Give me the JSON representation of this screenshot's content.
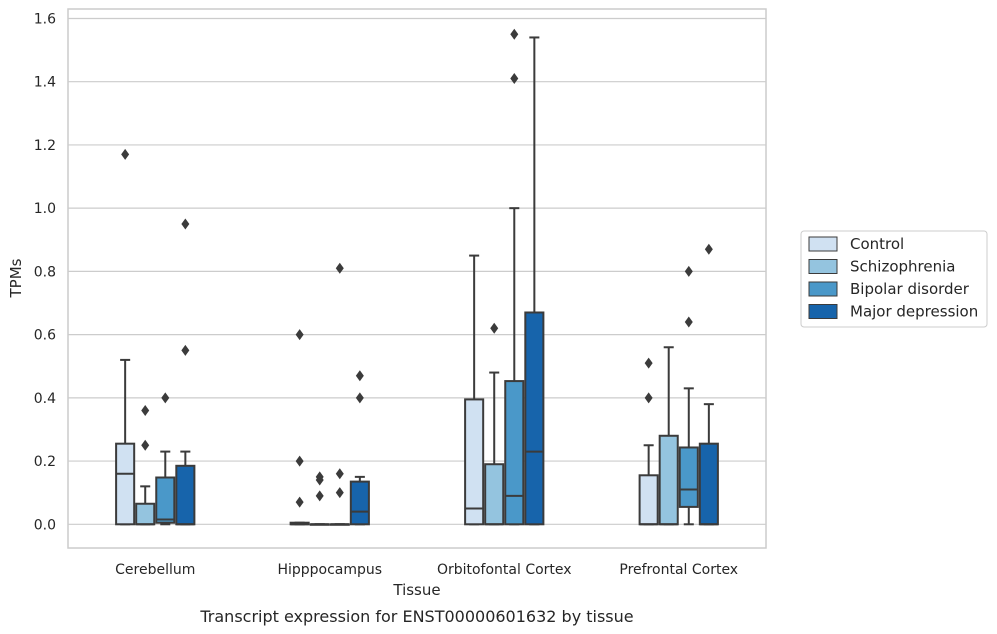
{
  "chart_data": {
    "type": "box",
    "xlabel": "Tissue",
    "ylabel": "TPMs",
    "ylim": [
      -0.075,
      1.63
    ],
    "yticks": [
      0.0,
      0.2,
      0.4,
      0.6,
      0.8,
      1.0,
      1.2,
      1.4,
      1.6
    ],
    "grid": "y",
    "legend": "outside-right",
    "categories": [
      "Cerebellum",
      "Hipppocampus",
      "Orbitofontal Cortex",
      "Prefrontal Cortex"
    ],
    "series": [
      {
        "name": "Control",
        "color": "#d0e1f2",
        "boxes": [
          {
            "whislo": 0.0,
            "q1": 0.0,
            "med": 0.16,
            "q3": 0.255,
            "whishi": 0.52,
            "fliers": [
              1.17
            ]
          },
          {
            "whislo": 0.0,
            "q1": 0.0,
            "med": 0.0,
            "q3": 0.005,
            "whishi": 0.005,
            "fliers": [
              0.6,
              0.2,
              0.07
            ]
          },
          {
            "whislo": 0.0,
            "q1": 0.0,
            "med": 0.05,
            "q3": 0.395,
            "whishi": 0.85,
            "fliers": []
          },
          {
            "whislo": 0.0,
            "q1": 0.0,
            "med": 0.0,
            "q3": 0.155,
            "whishi": 0.25,
            "fliers": [
              0.51,
              0.4
            ]
          }
        ]
      },
      {
        "name": "Schizophrenia",
        "color": "#94c4df",
        "boxes": [
          {
            "whislo": 0.0,
            "q1": 0.0,
            "med": 0.0,
            "q3": 0.065,
            "whishi": 0.12,
            "fliers": [
              0.36,
              0.25
            ]
          },
          {
            "whislo": 0.0,
            "q1": 0.0,
            "med": 0.0,
            "q3": 0.0,
            "whishi": 0.0,
            "fliers": [
              0.15,
              0.14,
              0.09
            ]
          },
          {
            "whislo": 0.0,
            "q1": 0.0,
            "med": 0.0,
            "q3": 0.19,
            "whishi": 0.48,
            "fliers": [
              0.62
            ]
          },
          {
            "whislo": 0.0,
            "q1": 0.0,
            "med": 0.0,
            "q3": 0.28,
            "whishi": 0.56,
            "fliers": []
          }
        ]
      },
      {
        "name": "Bipolar disorder",
        "color": "#4a98c9",
        "boxes": [
          {
            "whislo": 0.0,
            "q1": 0.005,
            "med": 0.015,
            "q3": 0.148,
            "whishi": 0.23,
            "fliers": [
              0.4
            ]
          },
          {
            "whislo": 0.0,
            "q1": 0.0,
            "med": 0.0,
            "q3": 0.0,
            "whishi": 0.0,
            "fliers": [
              0.81,
              0.16,
              0.1
            ]
          },
          {
            "whislo": 0.0,
            "q1": 0.0,
            "med": 0.09,
            "q3": 0.453,
            "whishi": 1.0,
            "fliers": [
              1.55,
              1.41
            ]
          },
          {
            "whislo": 0.0,
            "q1": 0.055,
            "med": 0.11,
            "q3": 0.243,
            "whishi": 0.43,
            "fliers": [
              0.8,
              0.64
            ]
          }
        ]
      },
      {
        "name": "Major depression",
        "color": "#1764ab",
        "boxes": [
          {
            "whislo": 0.0,
            "q1": 0.0,
            "med": 0.0,
            "q3": 0.185,
            "whishi": 0.23,
            "fliers": [
              0.95,
              0.55
            ]
          },
          {
            "whislo": 0.0,
            "q1": 0.0,
            "med": 0.04,
            "q3": 0.135,
            "whishi": 0.15,
            "fliers": [
              0.47,
              0.4
            ]
          },
          {
            "whislo": 0.0,
            "q1": 0.0,
            "med": 0.23,
            "q3": 0.67,
            "whishi": 1.54,
            "fliers": []
          },
          {
            "whislo": 0.0,
            "q1": 0.0,
            "med": 0.0,
            "q3": 0.255,
            "whishi": 0.38,
            "fliers": [
              0.87
            ]
          }
        ]
      }
    ],
    "caption": "Transcript expression for ENST00000601632 by tissue"
  }
}
